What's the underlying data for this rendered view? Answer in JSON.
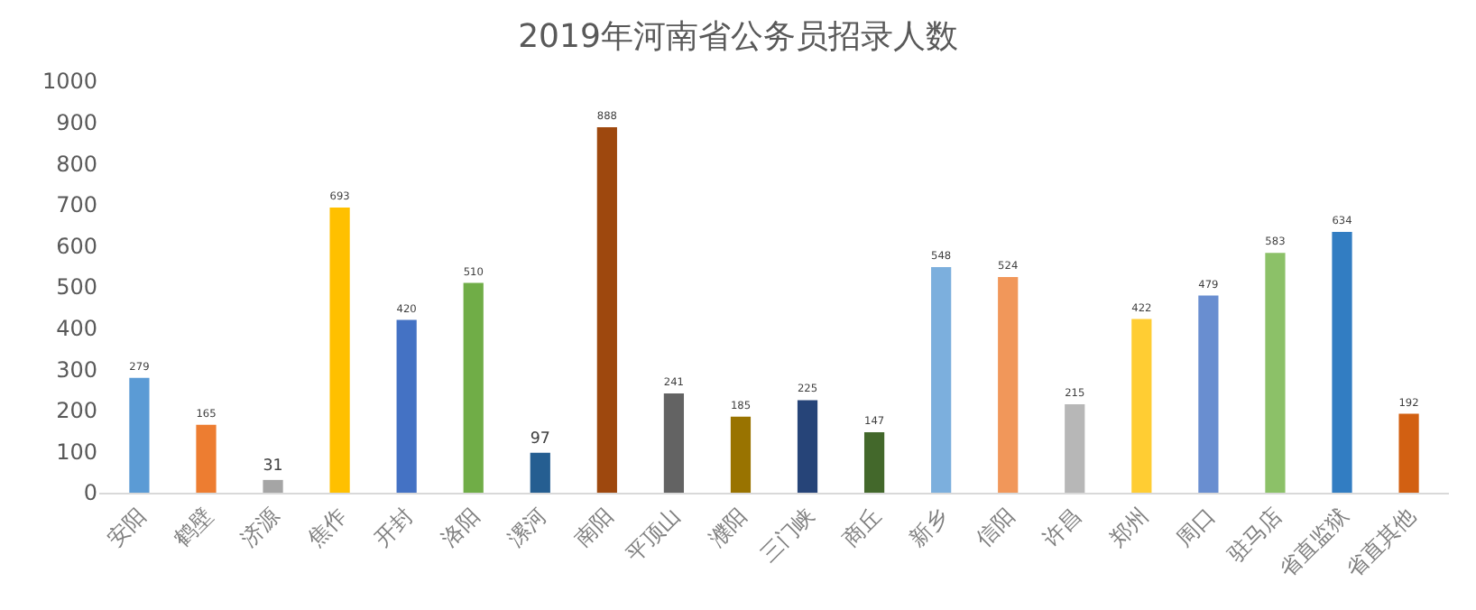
{
  "chart_data": {
    "type": "bar",
    "title": "2019年河南省公务员招录人数",
    "categories": [
      "安阳",
      "鹤壁",
      "济源",
      "焦作",
      "开封",
      "洛阳",
      "漯河",
      "南阳",
      "平顶山",
      "濮阳",
      "三门峡",
      "商丘",
      "新乡",
      "信阳",
      "许昌",
      "郑州",
      "周口",
      "驻马店",
      "省直监狱",
      "省直其他"
    ],
    "values": [
      279,
      165,
      31,
      693,
      420,
      510,
      97,
      888,
      241,
      185,
      225,
      147,
      548,
      524,
      215,
      422,
      479,
      583,
      634,
      192
    ],
    "colors": [
      "#5b9bd5",
      "#ed7d31",
      "#a5a5a5",
      "#ffc000",
      "#4472c4",
      "#70ad47",
      "#255e91",
      "#9e480e",
      "#636363",
      "#997300",
      "#264478",
      "#43682b",
      "#7cafdd",
      "#f1975a",
      "#b7b7b7",
      "#ffcd33",
      "#698ed0",
      "#8cc168",
      "#327dc2",
      "#d26012"
    ],
    "ylim": [
      0,
      1000
    ],
    "yticks": [
      0,
      100,
      200,
      300,
      400,
      500,
      600,
      700,
      800,
      900,
      1000
    ],
    "data_labels": true,
    "grid": false,
    "legend": false
  }
}
